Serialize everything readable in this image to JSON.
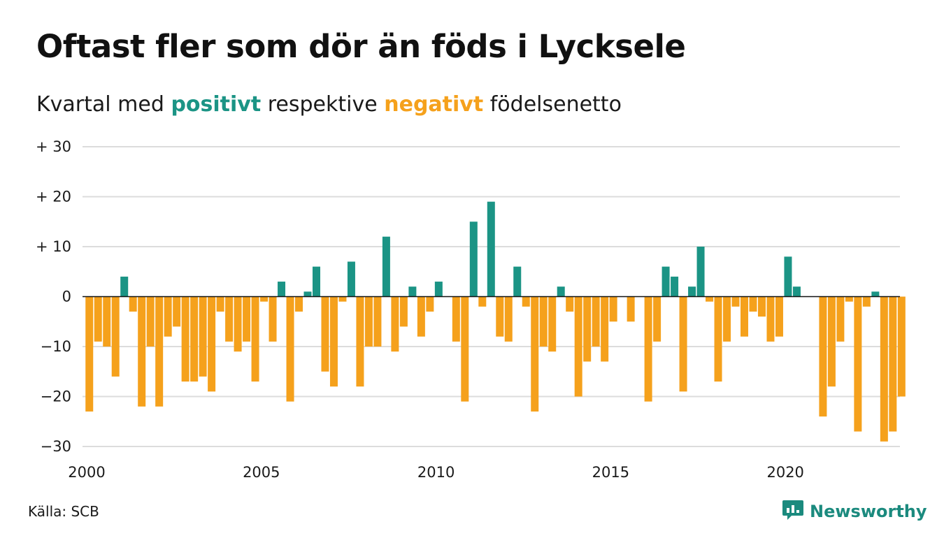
{
  "header": {
    "title": "Oftast fler som dör än föds i Lycksele",
    "subtitle_prefix": "Kvartal med",
    "subtitle_positive": "positivt",
    "subtitle_middle": "respektive",
    "subtitle_negative": "negativt",
    "subtitle_suffix": "födelsenetto"
  },
  "footer": {
    "source": "Källa: SCB",
    "brand": "Newsworthy"
  },
  "colors": {
    "positive": "#1b9485",
    "negative": "#f5a11c",
    "grid": "#dcdcdc",
    "brand": "#1b8a7e"
  },
  "icons": {
    "brand_logo": "bar-chart-speech-bubble-icon"
  },
  "chart_data": {
    "type": "bar",
    "x_start": 2000,
    "period": "quarter",
    "x_ticks": [
      2000,
      2005,
      2010,
      2015,
      2020
    ],
    "x_tick_labels": [
      "2000",
      "2005",
      "2010",
      "2015",
      "2020"
    ],
    "y_ticks": [
      30,
      20,
      10,
      0,
      -10,
      -20,
      -30
    ],
    "y_tick_labels": [
      "+ 30",
      "+ 20",
      "+ 10",
      "0",
      "−10",
      "−20",
      "−30"
    ],
    "ylim": [
      -30,
      30
    ],
    "grid": true,
    "values": [
      -23,
      -9,
      -10,
      -16,
      4,
      -3,
      -22,
      -10,
      -22,
      -8,
      -6,
      -17,
      -17,
      -16,
      -19,
      -3,
      -9,
      -11,
      -9,
      -17,
      -1,
      -9,
      3,
      -21,
      -3,
      1,
      6,
      -15,
      -18,
      -1,
      7,
      -18,
      -10,
      -10,
      12,
      -11,
      -6,
      2,
      -8,
      -3,
      3,
      0,
      -9,
      -21,
      15,
      -2,
      19,
      -8,
      -9,
      6,
      -2,
      -23,
      -10,
      -11,
      2,
      -3,
      -20,
      -13,
      -10,
      -13,
      -5,
      0,
      -5,
      0,
      -21,
      -9,
      6,
      4,
      -19,
      2,
      10,
      -1,
      -17,
      -9,
      -2,
      -8,
      -3,
      -4,
      -9,
      -8,
      8,
      2,
      0,
      0,
      -24,
      -18,
      -9,
      -1,
      -27,
      -2,
      1,
      -29,
      -27,
      -20
    ]
  }
}
